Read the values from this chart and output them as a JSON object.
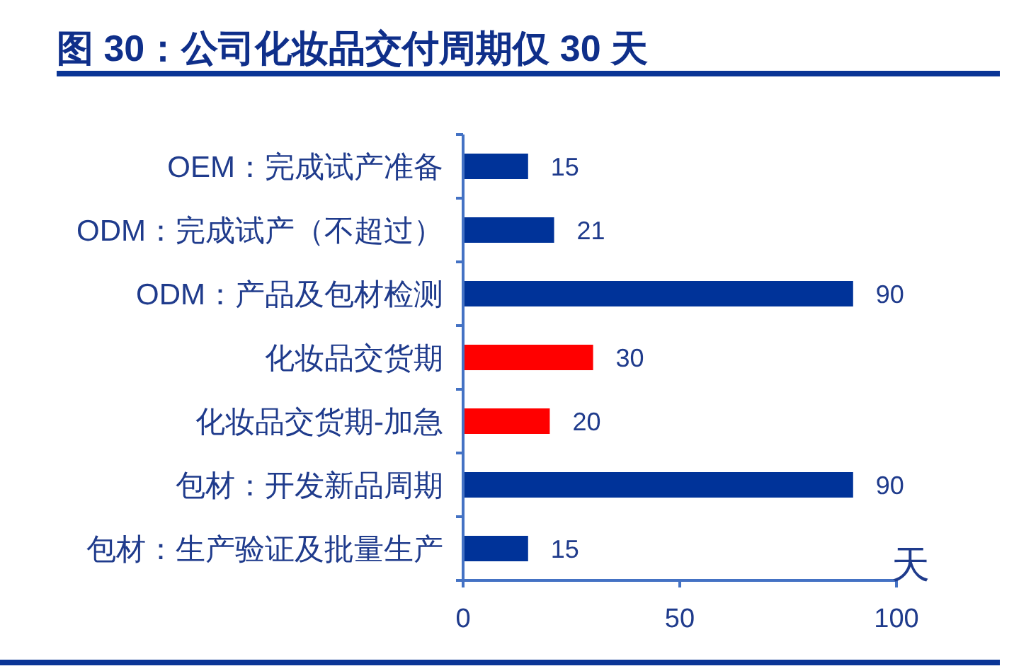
{
  "chart_data": {
    "type": "bar",
    "orientation": "horizontal",
    "title": "图 30：公司化妆品交付周期仅 30 天",
    "categories": [
      "OEM：完成试产准备",
      "ODM：完成试产（不超过）",
      "ODM：产品及包材检测",
      "化妆品交货期",
      "化妆品交货期-加急",
      "包材：开发新品周期",
      "包材：生产验证及批量生产"
    ],
    "values": [
      15,
      21,
      90,
      30,
      20,
      90,
      15
    ],
    "colors": [
      "#003399",
      "#003399",
      "#003399",
      "#ff0000",
      "#ff0000",
      "#003399",
      "#003399"
    ],
    "xlim": [
      0,
      100
    ],
    "xticks": [
      0,
      50,
      100
    ],
    "xlabel": "天",
    "data_labels": true
  }
}
